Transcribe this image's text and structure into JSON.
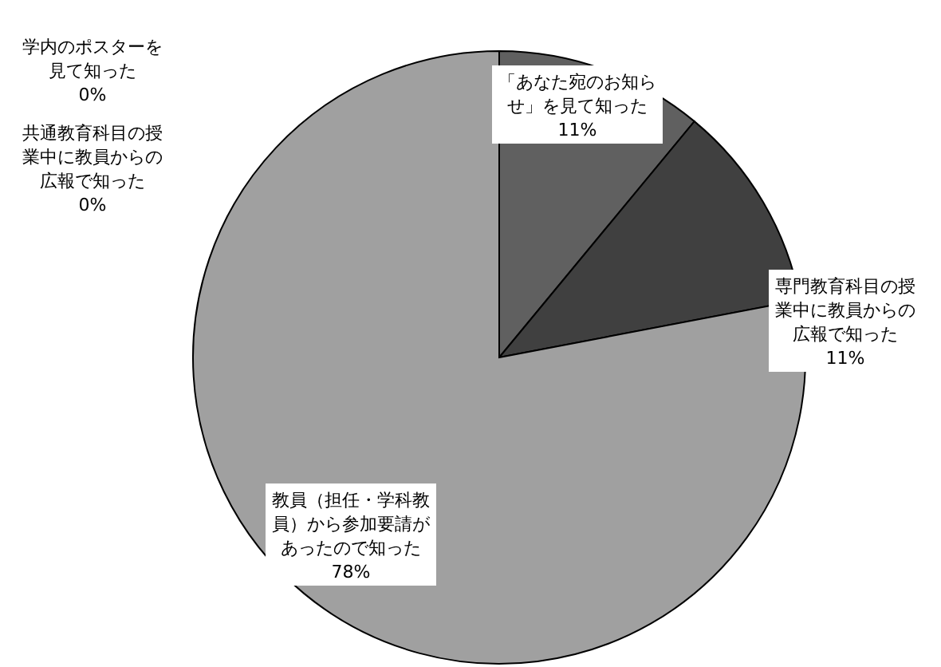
{
  "chart_data": {
    "type": "pie",
    "categories": [
      "学内のポスターを見て知った",
      "共通教育科目の授業中に教員からの広報で知った",
      "「あなた宛のお知らせ」を見て知った",
      "専門教育科目の授業中に教員からの広報で知った",
      "教員（担任・学科教員）から参加要請があったので知った"
    ],
    "values": [
      0,
      0,
      11,
      11,
      78
    ],
    "value_labels": [
      "0%",
      "0%",
      "11%",
      "11%",
      "78%"
    ],
    "colors": [
      "#c0c0c0",
      "#d0d0d0",
      "#606060",
      "#404040",
      "#a0a0a0"
    ]
  }
}
